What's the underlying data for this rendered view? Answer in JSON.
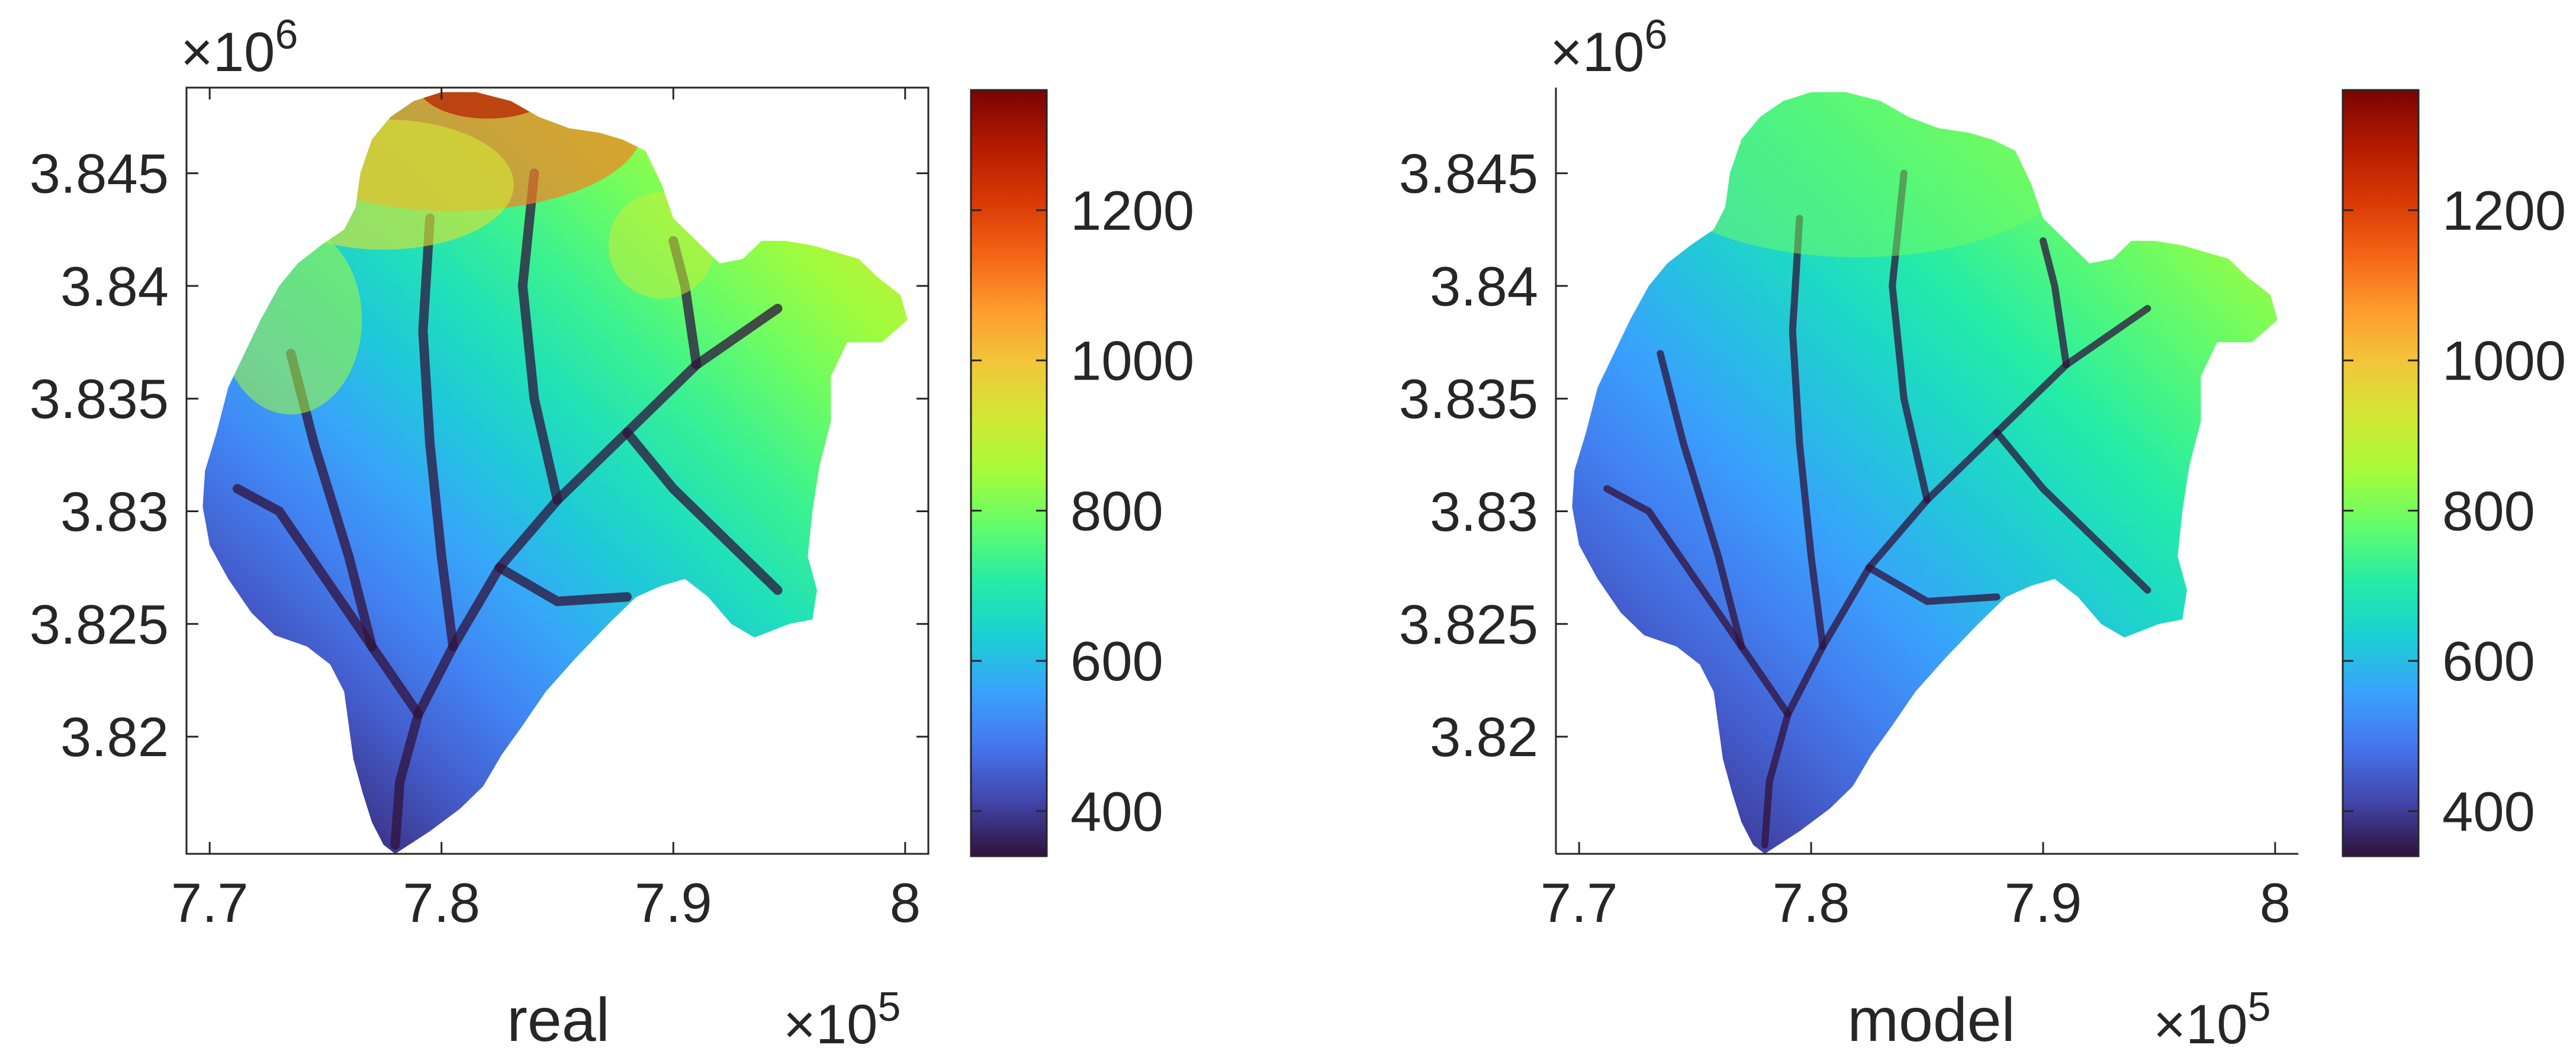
{
  "chart_data": [
    {
      "type": "heatmap",
      "title": "",
      "xlabel": "real",
      "ylabel": "",
      "x_exponent": "×10^5",
      "y_exponent": "×10^6",
      "xlim": [
        7.69,
        8.01
      ],
      "ylim": [
        3.8148,
        3.8488
      ],
      "xticks": [
        7.7,
        7.8,
        7.9,
        8.0
      ],
      "xtick_labels": [
        "7.7",
        "7.8",
        "7.9",
        "8"
      ],
      "yticks": [
        3.82,
        3.825,
        3.83,
        3.835,
        3.84,
        3.845
      ],
      "ytick_labels": [
        "3.82",
        "3.825",
        "3.83",
        "3.835",
        "3.84",
        "3.845"
      ],
      "colorbar": {
        "min": 340,
        "max": 1360,
        "ticks": [
          400,
          600,
          800,
          1000,
          1200
        ],
        "tick_labels": [
          "400",
          "600",
          "800",
          "1000",
          "1200"
        ],
        "colormap": "turbo"
      },
      "value_range": [
        340,
        1360
      ],
      "box": "full"
    },
    {
      "type": "heatmap",
      "title": "",
      "xlabel": "model",
      "ylabel": "",
      "x_exponent": "×10^5",
      "y_exponent": "×10^6",
      "xlim": [
        7.69,
        8.01
      ],
      "ylim": [
        3.8148,
        3.8488
      ],
      "xticks": [
        7.7,
        7.8,
        7.9,
        8.0
      ],
      "xtick_labels": [
        "7.7",
        "7.8",
        "7.9",
        "8"
      ],
      "yticks": [
        3.82,
        3.825,
        3.83,
        3.835,
        3.84,
        3.845
      ],
      "ytick_labels": [
        "3.82",
        "3.825",
        "3.83",
        "3.835",
        "3.84",
        "3.845"
      ],
      "colorbar": {
        "min": 340,
        "max": 1360,
        "ticks": [
          400,
          600,
          800,
          1000,
          1200
        ],
        "tick_labels": [
          "400",
          "600",
          "800",
          "1000",
          "1200"
        ],
        "colormap": "turbo"
      },
      "value_range": [
        340,
        850
      ],
      "box": "left-bottom"
    }
  ],
  "colors": {
    "axis": "#262626",
    "turbo_stops": [
      "#30123b",
      "#4145ab",
      "#4675ed",
      "#39a2fc",
      "#1bcfd4",
      "#24eca6",
      "#61fc6c",
      "#a4fc3b",
      "#d1e834",
      "#f3c63a",
      "#fe9b2d",
      "#f36315",
      "#d93806",
      "#b11901",
      "#7a0403"
    ]
  }
}
